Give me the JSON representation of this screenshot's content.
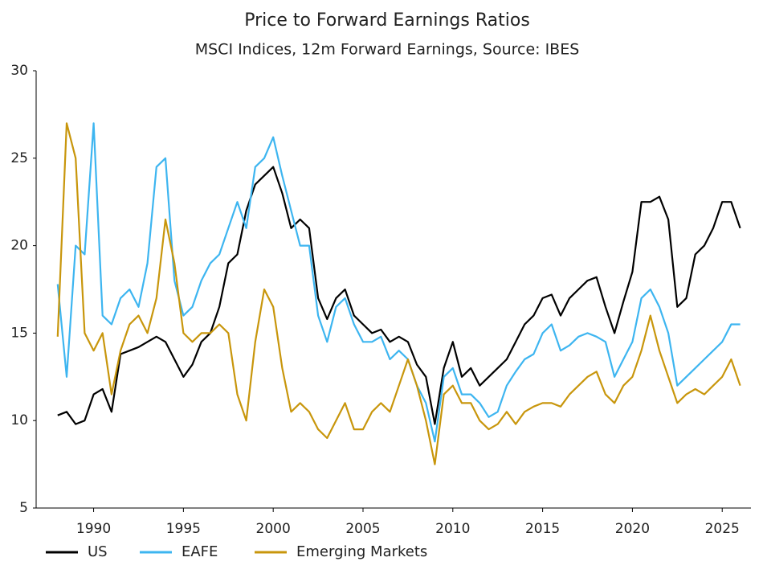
{
  "chart_data": {
    "type": "line",
    "title": "Price to Forward Earnings Ratios",
    "subtitle": "MSCI Indices, 12m Forward Earnings, Source: IBES",
    "x": [
      1988,
      1988.5,
      1989,
      1989.5,
      1990,
      1990.5,
      1991,
      1991.5,
      1992,
      1992.5,
      1993,
      1993.5,
      1994,
      1994.5,
      1995,
      1995.5,
      1996,
      1996.5,
      1997,
      1997.5,
      1998,
      1998.5,
      1999,
      1999.5,
      2000,
      2000.5,
      2001,
      2001.5,
      2002,
      2002.5,
      2003,
      2003.5,
      2004,
      2004.5,
      2005,
      2005.5,
      2006,
      2006.5,
      2007,
      2007.5,
      2008,
      2008.5,
      2009,
      2009.5,
      2010,
      2010.5,
      2011,
      2011.5,
      2012,
      2012.5,
      2013,
      2013.5,
      2014,
      2014.5,
      2015,
      2015.5,
      2016,
      2016.5,
      2017,
      2017.5,
      2018,
      2018.5,
      2019,
      2019.5,
      2020,
      2020.5,
      2021,
      2021.5,
      2022,
      2022.5,
      2023,
      2023.5,
      2024,
      2024.5,
      2025,
      2025.5,
      2026
    ],
    "series": [
      {
        "name": "US",
        "color": "#000000",
        "values": [
          10.3,
          10.5,
          9.8,
          10.0,
          11.5,
          11.8,
          10.5,
          13.8,
          14.0,
          14.2,
          14.5,
          14.8,
          14.5,
          13.5,
          12.5,
          13.2,
          14.5,
          15.0,
          16.5,
          19.0,
          19.5,
          22.0,
          23.5,
          24.0,
          24.5,
          23.0,
          21.0,
          21.5,
          21.0,
          17.0,
          15.8,
          17.0,
          17.5,
          16.0,
          15.5,
          15.0,
          15.2,
          14.5,
          14.8,
          14.5,
          13.2,
          12.5,
          9.8,
          13.0,
          14.5,
          12.5,
          13.0,
          12.0,
          12.5,
          13.0,
          13.5,
          14.5,
          15.5,
          16.0,
          17.0,
          17.2,
          16.0,
          17.0,
          17.5,
          18.0,
          18.2,
          16.5,
          15.0,
          16.8,
          18.5,
          22.5,
          22.5,
          22.8,
          21.5,
          16.5,
          17.0,
          19.5,
          20.0,
          21.0,
          22.5,
          22.5,
          21.0
        ]
      },
      {
        "name": "EAFE",
        "color": "#3db5f0",
        "values": [
          17.8,
          12.5,
          20.0,
          19.5,
          27.0,
          16.0,
          15.5,
          17.0,
          17.5,
          16.5,
          19.0,
          24.5,
          25.0,
          18.0,
          16.0,
          16.5,
          18.0,
          19.0,
          19.5,
          21.0,
          22.5,
          21.0,
          24.5,
          25.0,
          26.2,
          24.0,
          22.0,
          20.0,
          20.0,
          16.0,
          14.5,
          16.5,
          17.0,
          15.5,
          14.5,
          14.5,
          14.8,
          13.5,
          14.0,
          13.5,
          12.0,
          11.0,
          8.8,
          12.5,
          13.0,
          11.5,
          11.5,
          11.0,
          10.2,
          10.5,
          12.0,
          12.8,
          13.5,
          13.8,
          15.0,
          15.5,
          14.0,
          14.3,
          14.8,
          15.0,
          14.8,
          14.5,
          12.5,
          13.5,
          14.5,
          17.0,
          17.5,
          16.5,
          15.0,
          12.0,
          12.5,
          13.0,
          13.5,
          14.0,
          14.5,
          15.5,
          15.5
        ]
      },
      {
        "name": "Emerging Markets",
        "color": "#c8960c",
        "values": [
          14.8,
          27.0,
          25.0,
          15.0,
          14.0,
          15.0,
          11.5,
          14.0,
          15.5,
          16.0,
          15.0,
          17.0,
          21.5,
          19.0,
          15.0,
          14.5,
          15.0,
          15.0,
          15.5,
          15.0,
          11.5,
          10.0,
          14.5,
          17.5,
          16.5,
          13.0,
          10.5,
          11.0,
          10.5,
          9.5,
          9.0,
          10.0,
          11.0,
          9.5,
          9.5,
          10.5,
          11.0,
          10.5,
          12.0,
          13.5,
          12.0,
          10.0,
          7.5,
          11.5,
          12.0,
          11.0,
          11.0,
          10.0,
          9.5,
          9.8,
          10.5,
          9.8,
          10.5,
          10.8,
          11.0,
          11.0,
          10.8,
          11.5,
          12.0,
          12.5,
          12.8,
          11.5,
          11.0,
          12.0,
          12.5,
          14.0,
          16.0,
          14.0,
          12.5,
          11.0,
          11.5,
          11.8,
          11.5,
          12.0,
          12.5,
          13.5,
          12.0
        ]
      }
    ],
    "xlim": [
      1986.8,
      2026.6
    ],
    "xticks": [
      1990,
      1995,
      2000,
      2005,
      2010,
      2015,
      2020,
      2025
    ],
    "ylim": [
      5,
      30
    ],
    "yticks": [
      5,
      10,
      15,
      20,
      25,
      30
    ],
    "grid": false,
    "legend": "bottom-left"
  }
}
